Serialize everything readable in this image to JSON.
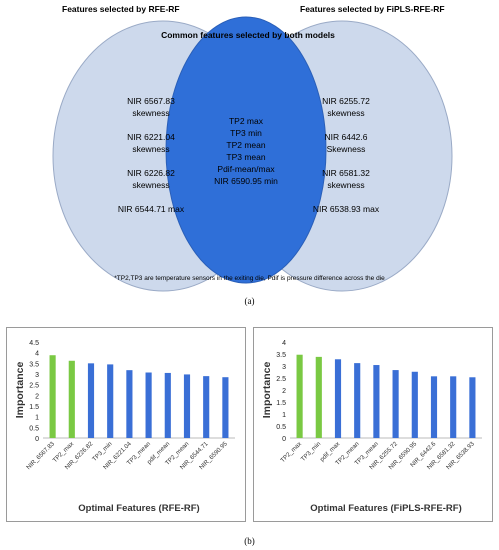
{
  "venn": {
    "left_title": "Features selected by RFE-RF",
    "right_title": "Features selected by FiPLS-RFE-RF",
    "center_title": "Common features selected by both models",
    "left_items": [
      "NIR 6567.83",
      "skewness",
      "NIR 6221.04",
      "skewness",
      "NIR 6226.82",
      "skewness",
      "NIR 6544.71 max"
    ],
    "center_items": [
      "TP2 max",
      "TP3 min",
      "TP2 mean",
      "TP3 mean",
      "Pdif-mean/max",
      "NIR 6590.95 min"
    ],
    "right_items": [
      "NIR 6255.72",
      "skewness",
      "NIR 6442.6",
      "Skewness",
      "NIR 6581.32",
      "skewness",
      "NIR 6538.93 max"
    ],
    "footnote": "*TP2,TP3 are temperature sensors in the exiting die, Pdif is pressure difference across the die",
    "colors": {
      "side": "#cdd9ec",
      "center": "#2f6fd8"
    }
  },
  "caption_a": "(a)",
  "caption_b": "(b)",
  "chart_data": [
    {
      "type": "bar",
      "categories": [
        "NIR_6567.83",
        "TP2_max",
        "NIR_6226.82",
        "TP3_min",
        "NIR_6221.04",
        "TP3_mean",
        "pdif_mean",
        "TP2_mean",
        "NIR_6544.71",
        "NIR_6590.95"
      ],
      "values": [
        3.88,
        3.62,
        3.5,
        3.45,
        3.18,
        3.07,
        3.05,
        2.98,
        2.9,
        2.85
      ],
      "colors": [
        "#7ac943",
        "#7ac943",
        "#3a6fd6",
        "#3a6fd6",
        "#3a6fd6",
        "#3a6fd6",
        "#3a6fd6",
        "#3a6fd6",
        "#3a6fd6",
        "#3a6fd6"
      ],
      "ylabel": "Importance",
      "xlabel": "Optimal Features (RFE-RF)",
      "ylim": [
        0,
        4.5
      ],
      "yticks": [
        "0",
        "0.5",
        "1",
        "1.5",
        "2",
        "2.5",
        "3",
        "3.5",
        "4",
        "4.5"
      ],
      "grid": false
    },
    {
      "type": "bar",
      "categories": [
        "TP2_max",
        "TP3_min",
        "pdif_max",
        "TP2_mean",
        "TP3_mean",
        "NIR_6255.72",
        "NIR_6590.95",
        "NIR_6442.6",
        "NIR_6581.32",
        "NIR_6538.93"
      ],
      "values": [
        3.47,
        3.38,
        3.28,
        3.12,
        3.04,
        2.83,
        2.76,
        2.57,
        2.57,
        2.53
      ],
      "colors": [
        "#7ac943",
        "#7ac943",
        "#3a6fd6",
        "#3a6fd6",
        "#3a6fd6",
        "#3a6fd6",
        "#3a6fd6",
        "#3a6fd6",
        "#3a6fd6",
        "#3a6fd6"
      ],
      "ylabel": "Importance",
      "xlabel": "Optimal Features (FiPLS-RFE-RF)",
      "ylim": [
        0,
        4
      ],
      "yticks": [
        "0",
        "0.5",
        "1",
        "1.5",
        "2",
        "2.5",
        "3",
        "3.5",
        "4"
      ],
      "grid": false
    }
  ]
}
